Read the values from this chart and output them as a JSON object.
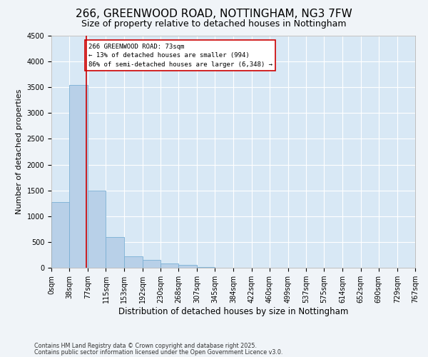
{
  "title1": "266, GREENWOOD ROAD, NOTTINGHAM, NG3 7FW",
  "title2": "Size of property relative to detached houses in Nottingham",
  "xlabel": "Distribution of detached houses by size in Nottingham",
  "ylabel": "Number of detached properties",
  "bar_color": "#b8d0e8",
  "bar_edge_color": "#7aafd4",
  "background_color": "#d8e8f5",
  "grid_color": "#ffffff",
  "property_line_color": "#cc0000",
  "property_sqm": 73,
  "bin_edges": [
    0,
    38,
    77,
    115,
    153,
    192,
    230,
    268,
    307,
    345,
    384,
    422,
    460,
    499,
    537,
    575,
    614,
    652,
    690,
    729,
    767
  ],
  "bar_heights": [
    1270,
    3550,
    1490,
    600,
    225,
    150,
    90,
    50,
    10,
    0,
    0,
    0,
    0,
    5,
    0,
    0,
    0,
    0,
    0,
    0
  ],
  "annotation_text": "266 GREENWOOD ROAD: 73sqm\n← 13% of detached houses are smaller (994)\n86% of semi-detached houses are larger (6,348) →",
  "annotation_box_color": "#ffffff",
  "annotation_box_edge": "#cc0000",
  "ylim": [
    0,
    4500
  ],
  "yticks": [
    0,
    500,
    1000,
    1500,
    2000,
    2500,
    3000,
    3500,
    4000,
    4500
  ],
  "footer1": "Contains HM Land Registry data © Crown copyright and database right 2025.",
  "footer2": "Contains public sector information licensed under the Open Government Licence v3.0.",
  "title1_fontsize": 11,
  "title2_fontsize": 9,
  "tick_fontsize": 7,
  "xlabel_fontsize": 8.5,
  "ylabel_fontsize": 8
}
